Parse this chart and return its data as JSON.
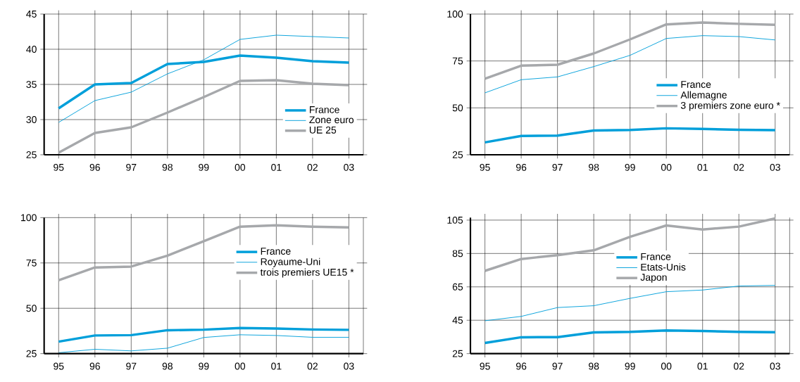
{
  "chart_data": [
    {
      "type": "line",
      "categories": [
        "95",
        "96",
        "97",
        "98",
        "99",
        "00",
        "01",
        "02",
        "03"
      ],
      "ylim": [
        25,
        45
      ],
      "yticks": [
        25,
        30,
        35,
        40,
        45
      ],
      "grid": true,
      "legend": "bottom right",
      "series": [
        {
          "name": "France",
          "color": "#009fda",
          "values": [
            31.6,
            35.0,
            35.2,
            37.9,
            38.2,
            39.1,
            38.8,
            38.3,
            38.1
          ]
        },
        {
          "name": "Zone euro",
          "color": "#009fda",
          "values": [
            29.6,
            32.7,
            33.9,
            36.5,
            38.5,
            41.4,
            42.0,
            41.8,
            41.6
          ]
        },
        {
          "name": "UE 25",
          "color": "#a6a8ab",
          "values": [
            25.3,
            28.1,
            28.9,
            31.0,
            33.2,
            35.5,
            35.6,
            35.1,
            34.9
          ]
        }
      ]
    },
    {
      "type": "line",
      "categories": [
        "95",
        "96",
        "97",
        "98",
        "99",
        "00",
        "01",
        "02",
        "03"
      ],
      "ylim": [
        25,
        100
      ],
      "yticks": [
        25,
        50,
        75,
        100
      ],
      "grid": true,
      "legend": "right",
      "series": [
        {
          "name": "France",
          "color": "#009fda",
          "values": [
            31.6,
            35.0,
            35.2,
            37.9,
            38.2,
            39.1,
            38.8,
            38.3,
            38.1
          ]
        },
        {
          "name": "Allemagne",
          "color": "#009fda",
          "values": [
            58,
            65,
            66.5,
            72,
            78,
            87,
            88.5,
            88,
            86.2
          ]
        },
        {
          "name": "3 premiers zone euro *",
          "color": "#a6a8ab",
          "values": [
            65.5,
            72.5,
            73,
            79,
            86.5,
            94.5,
            95.5,
            94.8,
            94.3
          ]
        }
      ]
    },
    {
      "type": "line",
      "categories": [
        "95",
        "96",
        "97",
        "98",
        "99",
        "00",
        "01",
        "02",
        "03"
      ],
      "ylim": [
        25,
        100
      ],
      "yticks": [
        25,
        50,
        75,
        100
      ],
      "grid": true,
      "legend": "top right",
      "series": [
        {
          "name": "France",
          "color": "#009fda",
          "values": [
            31.6,
            35.0,
            35.2,
            37.9,
            38.2,
            39.1,
            38.8,
            38.3,
            38.1
          ]
        },
        {
          "name": "Royaume-Uni",
          "color": "#009fda",
          "values": [
            25.5,
            27.4,
            26.5,
            28.0,
            33.9,
            35.4,
            35.0,
            34.0,
            34.0
          ]
        },
        {
          "name": "trois premiers UE15 *",
          "color": "#a6a8ab",
          "values": [
            65.5,
            72.5,
            73,
            79,
            87,
            95,
            95.8,
            95,
            94.6
          ]
        }
      ]
    },
    {
      "type": "line",
      "categories": [
        "95",
        "96",
        "97",
        "98",
        "99",
        "00",
        "01",
        "02",
        "03"
      ],
      "ylim": [
        25,
        106.5
      ],
      "yticks": [
        25,
        45,
        65,
        85,
        105
      ],
      "grid": true,
      "legend": "top",
      "series": [
        {
          "name": "France",
          "color": "#009fda",
          "values": [
            31.4,
            34.8,
            34.9,
            37.7,
            38.0,
            38.9,
            38.6,
            38.0,
            37.8
          ]
        },
        {
          "name": "Etats-Unis",
          "color": "#009fda",
          "values": [
            44.7,
            47.3,
            52.6,
            53.7,
            58.1,
            62.1,
            63.1,
            65.5,
            65.9
          ]
        },
        {
          "name": "Japon",
          "color": "#a6a8ab",
          "values": [
            74.6,
            81.7,
            84,
            86.9,
            95,
            101.8,
            99.4,
            101.1,
            106
          ]
        }
      ]
    }
  ]
}
